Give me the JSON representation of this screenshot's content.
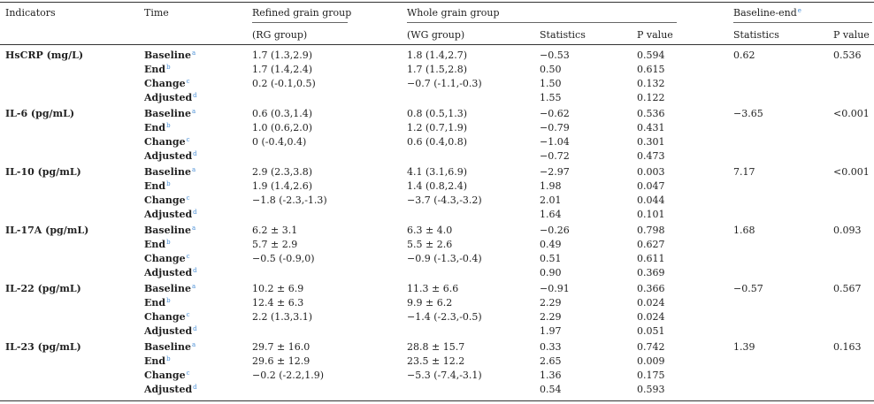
{
  "header": {
    "indicators": "Indicators",
    "time": "Time",
    "refined": "Refined grain group",
    "whole": "Whole grain group",
    "baseline_end": "Baseline-end",
    "baseline_end_sup": "e",
    "rg": "(RG group)",
    "wg": "(WG group)",
    "statistics": "Statistics",
    "pvalue": "P value",
    "statistics2": "Statistics",
    "pvalue2": "P value"
  },
  "row_labels": [
    "Baseline",
    "End",
    "Change",
    "Adjusted"
  ],
  "row_sups": [
    "a",
    "b",
    "c",
    "d"
  ],
  "groups": [
    {
      "indicator": "HsCRP (mg/L)",
      "rg": [
        "1.7 (1.3,2.9)",
        "1.7 (1.4,2.4)",
        "0.2 (-0.1,0.5)",
        ""
      ],
      "wg": [
        "1.8 (1.4,2.7)",
        "1.7 (1.5,2.8)",
        "−0.7 (-1.1,-0.3)",
        ""
      ],
      "stat": [
        "−0.53",
        "0.50",
        "1.50",
        "1.55"
      ],
      "p": [
        "0.594",
        "0.615",
        "0.132",
        "0.122"
      ],
      "be_stat": "0.62",
      "be_p": "0.536"
    },
    {
      "indicator": "IL-6 (pg/mL)",
      "rg": [
        "0.6 (0.3,1.4)",
        "1.0 (0.6,2.0)",
        "0 (-0.4,0.4)",
        ""
      ],
      "wg": [
        "0.8 (0.5,1.3)",
        "1.2 (0.7,1.9)",
        "0.6 (0.4,0.8)",
        ""
      ],
      "stat": [
        "−0.62",
        "−0.79",
        "−1.04",
        "−0.72"
      ],
      "p": [
        "0.536",
        "0.431",
        "0.301",
        "0.473"
      ],
      "be_stat": "−3.65",
      "be_p": "<0.001"
    },
    {
      "indicator": "IL-10 (pg/mL)",
      "rg": [
        "2.9 (2.3,3.8)",
        "1.9 (1.4,2.6)",
        "−1.8 (-2.3,-1.3)",
        ""
      ],
      "wg": [
        "4.1 (3.1,6.9)",
        "1.4 (0.8,2.4)",
        "−3.7 (-4.3,-3.2)",
        ""
      ],
      "stat": [
        "−2.97",
        "1.98",
        "2.01",
        "1.64"
      ],
      "p": [
        "0.003",
        "0.047",
        "0.044",
        "0.101"
      ],
      "be_stat": "7.17",
      "be_p": "<0.001"
    },
    {
      "indicator": "IL-17A (pg/mL)",
      "rg": [
        "6.2 ± 3.1",
        "5.7 ± 2.9",
        "−0.5 (-0.9,0)",
        ""
      ],
      "wg": [
        "6.3 ± 4.0",
        "5.5 ± 2.6",
        "−0.9 (-1.3,-0.4)",
        ""
      ],
      "stat": [
        "−0.26",
        "0.49",
        "0.51",
        "0.90"
      ],
      "p": [
        "0.798",
        "0.627",
        "0.611",
        "0.369"
      ],
      "be_stat": "1.68",
      "be_p": "0.093"
    },
    {
      "indicator": "IL-22 (pg/mL)",
      "rg": [
        "10.2 ± 6.9",
        "12.4 ± 6.3",
        "2.2 (1.3,3.1)",
        ""
      ],
      "wg": [
        "11.3 ± 6.6",
        "9.9 ± 6.2",
        "−1.4 (-2.3,-0.5)",
        ""
      ],
      "stat": [
        "−0.91",
        "2.29",
        "2.29",
        "1.97"
      ],
      "p": [
        "0.366",
        "0.024",
        "0.024",
        "0.051"
      ],
      "be_stat": "−0.57",
      "be_p": "0.567"
    },
    {
      "indicator": "IL-23 (pg/mL)",
      "rg": [
        "29.7 ± 16.0",
        "29.6 ± 12.9",
        "−0.2 (-2.2,1.9)",
        ""
      ],
      "wg": [
        "28.8 ± 15.7",
        "23.5 ± 12.2",
        "−5.3 (-7.4,-3.1)",
        ""
      ],
      "stat": [
        "0.33",
        "2.65",
        "1.36",
        "0.54"
      ],
      "p": [
        "0.742",
        "0.009",
        "0.175",
        "0.593"
      ],
      "be_stat": "1.39",
      "be_p": "0.163"
    }
  ]
}
